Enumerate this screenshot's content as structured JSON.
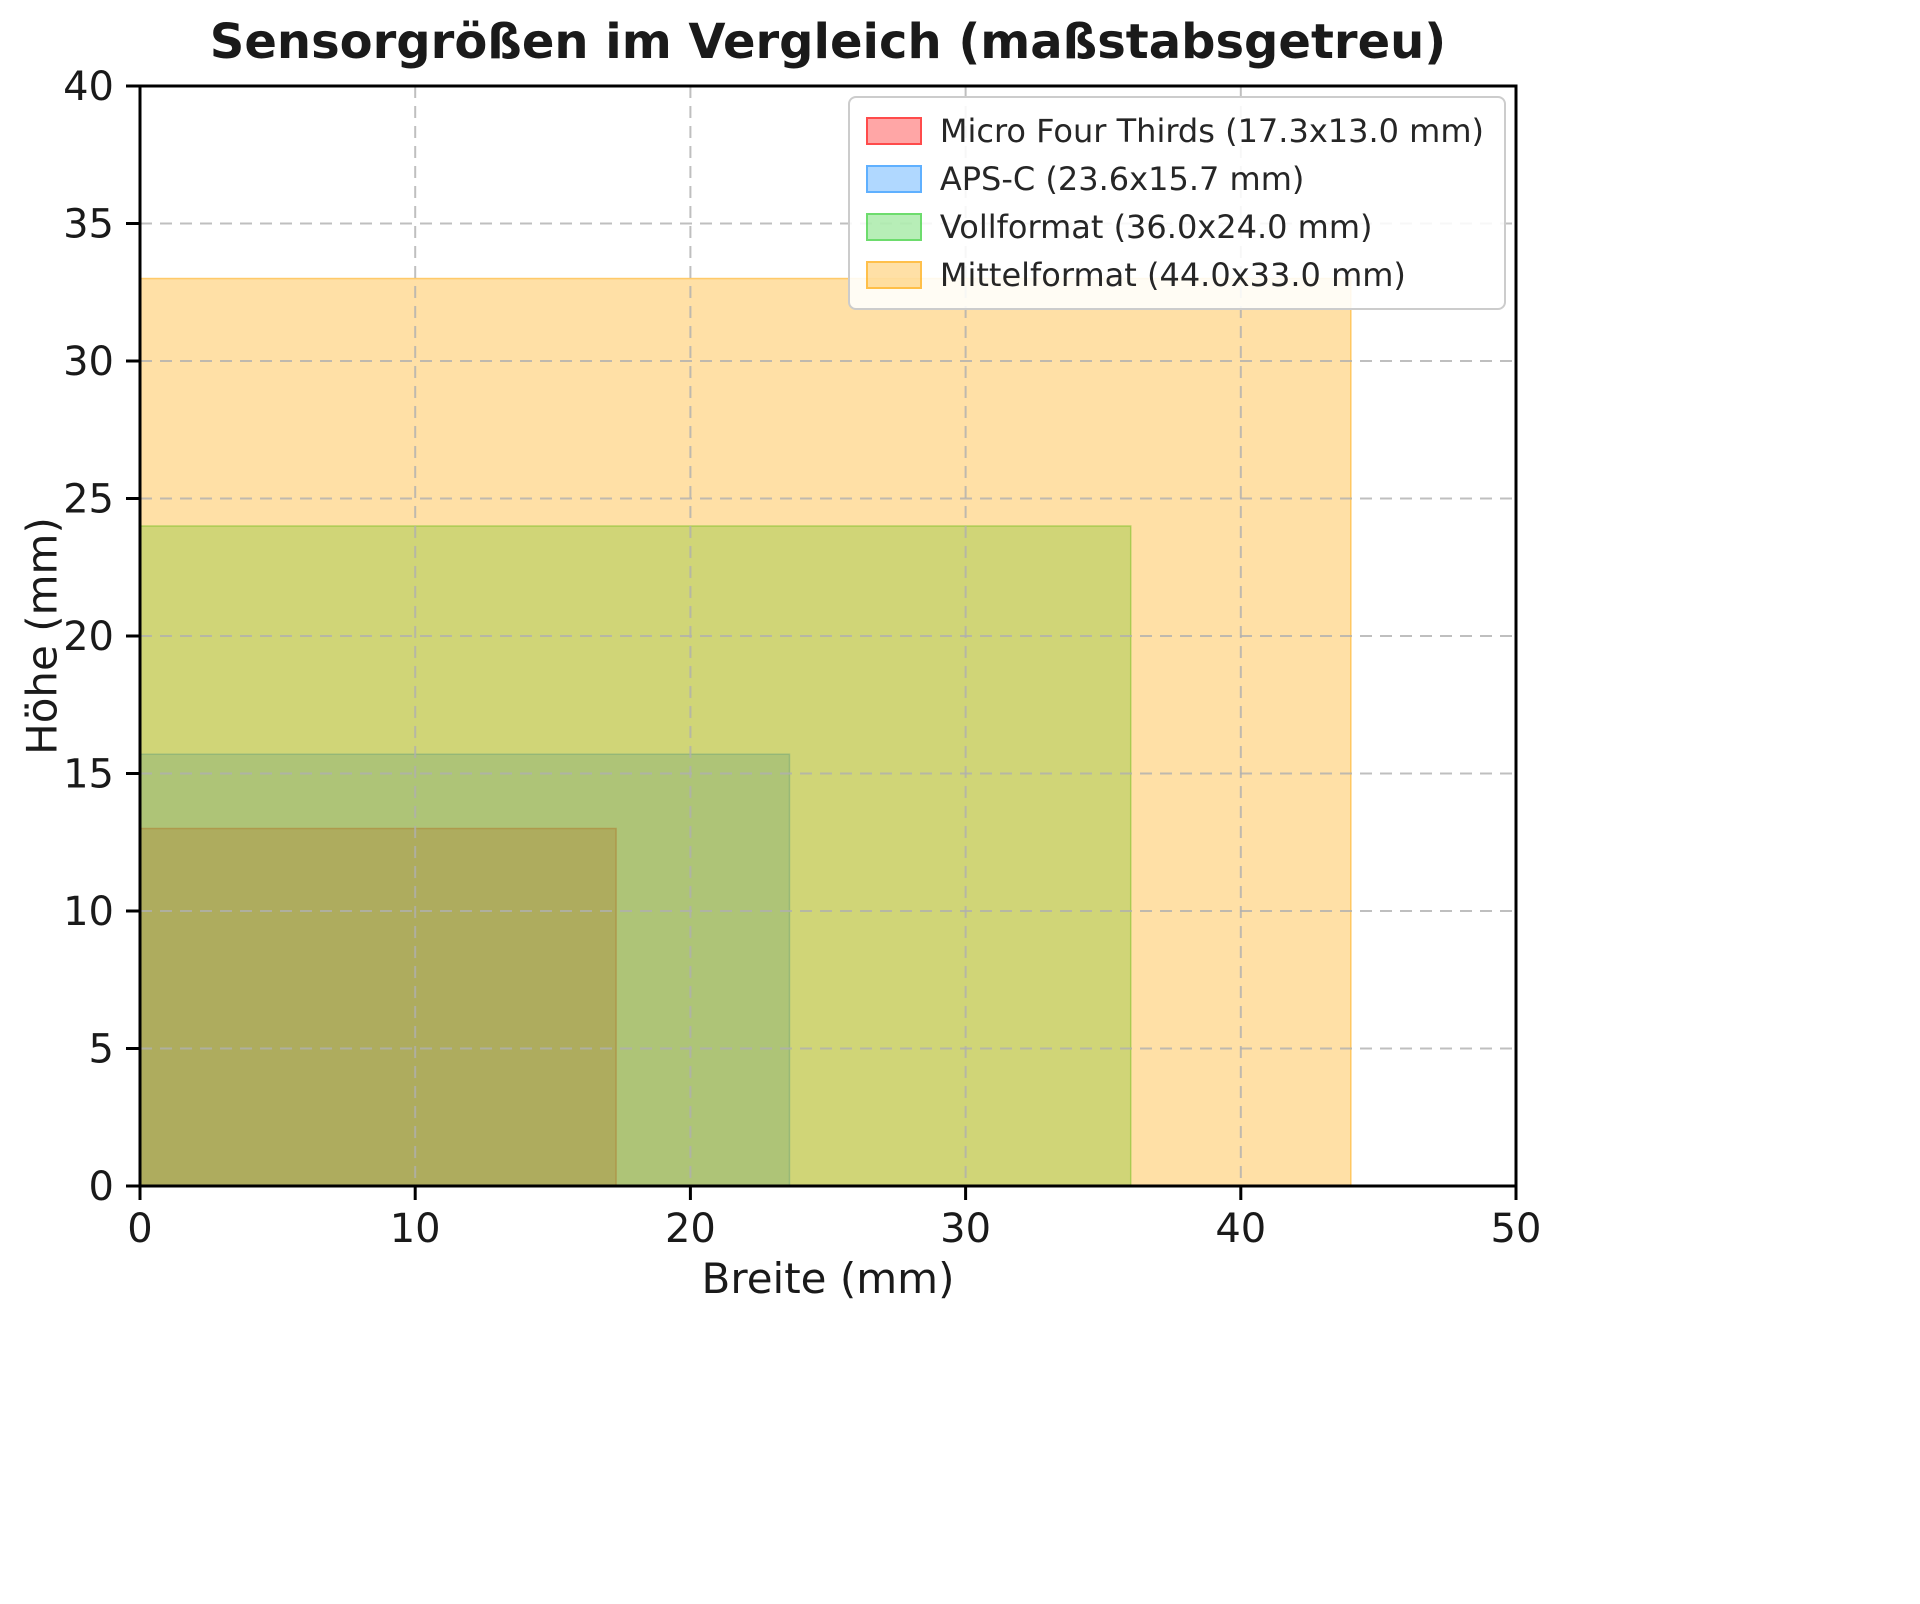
{
  "chart_data": {
    "type": "area",
    "title": "Sensorgrößen im Vergleich (maßstabsgetreu)",
    "xlabel": "Breite (mm)",
    "ylabel": "Höhe (mm)",
    "xlim": [
      0,
      50
    ],
    "ylim": [
      0,
      40
    ],
    "xticks": [
      0,
      10,
      20,
      30,
      40,
      50
    ],
    "yticks": [
      0,
      5,
      10,
      15,
      20,
      25,
      30,
      35,
      40
    ],
    "grid": true,
    "grid_style": "dashed",
    "legend_position": "upper right",
    "fill_alpha": 0.35,
    "series": [
      {
        "name": "micro-four-thirds",
        "label": "Micro Four Thirds (17.3x13.0 mm)",
        "width_mm": 17.3,
        "height_mm": 13.0,
        "color": "#ff0000"
      },
      {
        "name": "aps-c",
        "label": "APS-C (23.6x15.7 mm)",
        "width_mm": 23.6,
        "height_mm": 15.7,
        "color": "#1e90ff"
      },
      {
        "name": "vollformat",
        "label": "Vollformat (36.0x24.0 mm)",
        "width_mm": 36.0,
        "height_mm": 24.0,
        "color": "#32cd32"
      },
      {
        "name": "mittelformat",
        "label": "Mittelformat (44.0x33.0 mm)",
        "width_mm": 44.0,
        "height_mm": 33.0,
        "color": "#ffa500"
      }
    ]
  }
}
